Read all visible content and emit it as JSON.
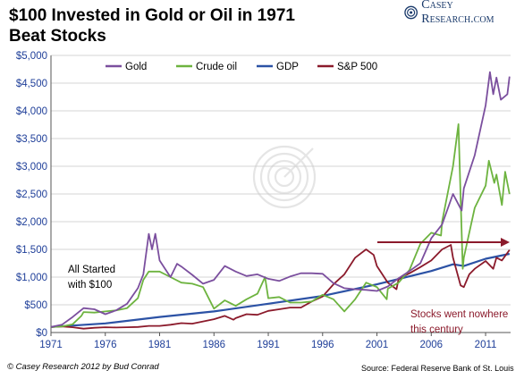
{
  "header": {
    "title_line1": "$100 Invested in Gold or Oil in 1971",
    "title_line2": "Beat Stocks",
    "brand": "Casey Research.com"
  },
  "footer": {
    "copyright": "© Casey Research 2012 by Bud Conrad",
    "source": "Source:  Federal Reserve Bank of St. Louis"
  },
  "chart_data": {
    "type": "line",
    "title": "$100 Invested in Gold or Oil in 1971 Beat Stocks",
    "xlim": [
      1971,
      2013.3
    ],
    "ylim": [
      0,
      5000
    ],
    "x_ticks": [
      "1971",
      "1976",
      "1981",
      "1986",
      "1991",
      "1996",
      "2001",
      "2006",
      "2011"
    ],
    "y_ticks": [
      "$0",
      "$500",
      "$1,000",
      "$1,500",
      "$2,000",
      "$2,500",
      "$3,000",
      "$3,500",
      "$4,000",
      "$4,500",
      "$5,000"
    ],
    "grid": "horizontal",
    "legend_position": "top",
    "annotations": {
      "start_line1": "All Started",
      "start_line2": "with $100",
      "stocks_line1": "Stocks went nowhere",
      "stocks_line2": "this century"
    },
    "series": [
      {
        "name": "Gold",
        "color": "#7b4f9e",
        "points": [
          [
            1971,
            100
          ],
          [
            1972,
            140
          ],
          [
            1973,
            280
          ],
          [
            1974,
            440
          ],
          [
            1975,
            420
          ],
          [
            1976,
            330
          ],
          [
            1977,
            400
          ],
          [
            1978,
            520
          ],
          [
            1979,
            800
          ],
          [
            1979.5,
            1050
          ],
          [
            1980,
            1780
          ],
          [
            1980.3,
            1500
          ],
          [
            1980.6,
            1780
          ],
          [
            1981,
            1300
          ],
          [
            1981.5,
            1150
          ],
          [
            1982,
            1000
          ],
          [
            1982.6,
            1240
          ],
          [
            1983,
            1190
          ],
          [
            1984,
            1040
          ],
          [
            1985,
            880
          ],
          [
            1986,
            950
          ],
          [
            1987,
            1200
          ],
          [
            1988,
            1100
          ],
          [
            1989,
            1020
          ],
          [
            1990,
            1050
          ],
          [
            1991,
            970
          ],
          [
            1992,
            930
          ],
          [
            1993,
            1010
          ],
          [
            1994,
            1070
          ],
          [
            1995,
            1070
          ],
          [
            1996,
            1060
          ],
          [
            1997,
            890
          ],
          [
            1998,
            800
          ],
          [
            1999,
            780
          ],
          [
            2000,
            770
          ],
          [
            2001,
            750
          ],
          [
            2002,
            830
          ],
          [
            2003,
            980
          ],
          [
            2004,
            1110
          ],
          [
            2005,
            1250
          ],
          [
            2006,
            1700
          ],
          [
            2007,
            1950
          ],
          [
            2008,
            2500
          ],
          [
            2008.8,
            2200
          ],
          [
            2009,
            2600
          ],
          [
            2010,
            3200
          ],
          [
            2011,
            4100
          ],
          [
            2011.4,
            4700
          ],
          [
            2011.7,
            4300
          ],
          [
            2012,
            4600
          ],
          [
            2012.4,
            4200
          ],
          [
            2013,
            4300
          ],
          [
            2013.2,
            4620
          ]
        ]
      },
      {
        "name": "Crude oil",
        "color": "#6db33f",
        "points": [
          [
            1971,
            100
          ],
          [
            1972,
            110
          ],
          [
            1973,
            150
          ],
          [
            1973.8,
            300
          ],
          [
            1974,
            370
          ],
          [
            1975,
            360
          ],
          [
            1976,
            380
          ],
          [
            1977,
            400
          ],
          [
            1978,
            440
          ],
          [
            1979,
            620
          ],
          [
            1979.5,
            950
          ],
          [
            1980,
            1100
          ],
          [
            1981,
            1100
          ],
          [
            1982,
            1000
          ],
          [
            1983,
            900
          ],
          [
            1984,
            880
          ],
          [
            1985,
            820
          ],
          [
            1986,
            430
          ],
          [
            1987,
            580
          ],
          [
            1988,
            480
          ],
          [
            1989,
            600
          ],
          [
            1990,
            700
          ],
          [
            1990.7,
            1000
          ],
          [
            1991,
            620
          ],
          [
            1992,
            640
          ],
          [
            1993,
            540
          ],
          [
            1994,
            540
          ],
          [
            1995,
            560
          ],
          [
            1996,
            680
          ],
          [
            1997,
            600
          ],
          [
            1998,
            380
          ],
          [
            1999,
            600
          ],
          [
            2000,
            900
          ],
          [
            2001,
            820
          ],
          [
            2001.9,
            600
          ],
          [
            2002,
            790
          ],
          [
            2003,
            900
          ],
          [
            2004,
            1130
          ],
          [
            2005,
            1600
          ],
          [
            2006,
            1800
          ],
          [
            2006.9,
            1750
          ],
          [
            2007,
            2000
          ],
          [
            2008,
            3000
          ],
          [
            2008.5,
            3760
          ],
          [
            2008.9,
            1150
          ],
          [
            2009,
            1350
          ],
          [
            2010,
            2250
          ],
          [
            2011,
            2650
          ],
          [
            2011.3,
            3100
          ],
          [
            2011.8,
            2700
          ],
          [
            2012,
            2850
          ],
          [
            2012.5,
            2300
          ],
          [
            2012.8,
            2900
          ],
          [
            2013.2,
            2500
          ]
        ]
      },
      {
        "name": "GDP",
        "color": "#2c52a5",
        "points": [
          [
            1971,
            100
          ],
          [
            1976,
            165
          ],
          [
            1981,
            280
          ],
          [
            1986,
            380
          ],
          [
            1991,
            520
          ],
          [
            1996,
            660
          ],
          [
            2001,
            870
          ],
          [
            2006,
            1110
          ],
          [
            2008,
            1230
          ],
          [
            2009,
            1200
          ],
          [
            2011,
            1330
          ],
          [
            2013.2,
            1420
          ]
        ]
      },
      {
        "name": "S&P 500",
        "color": "#8b1a2b",
        "points": [
          [
            1971,
            100
          ],
          [
            1972,
            110
          ],
          [
            1973,
            95
          ],
          [
            1974,
            70
          ],
          [
            1975,
            85
          ],
          [
            1976,
            95
          ],
          [
            1977,
            90
          ],
          [
            1978,
            95
          ],
          [
            1979,
            100
          ],
          [
            1980,
            120
          ],
          [
            1981,
            120
          ],
          [
            1982,
            140
          ],
          [
            1983,
            170
          ],
          [
            1984,
            160
          ],
          [
            1985,
            200
          ],
          [
            1986,
            240
          ],
          [
            1987,
            300
          ],
          [
            1987.8,
            230
          ],
          [
            1988,
            260
          ],
          [
            1989,
            330
          ],
          [
            1990,
            320
          ],
          [
            1991,
            390
          ],
          [
            1992,
            420
          ],
          [
            1993,
            450
          ],
          [
            1994,
            450
          ],
          [
            1995,
            560
          ],
          [
            1996,
            650
          ],
          [
            1997,
            870
          ],
          [
            1998,
            1050
          ],
          [
            1999,
            1350
          ],
          [
            2000,
            1500
          ],
          [
            2000.7,
            1400
          ],
          [
            2001,
            1200
          ],
          [
            2002,
            900
          ],
          [
            2002.8,
            780
          ],
          [
            2003,
            970
          ],
          [
            2004,
            1070
          ],
          [
            2005,
            1180
          ],
          [
            2006,
            1300
          ],
          [
            2007,
            1500
          ],
          [
            2007.8,
            1580
          ],
          [
            2008,
            1350
          ],
          [
            2008.7,
            850
          ],
          [
            2009,
            820
          ],
          [
            2009.5,
            1050
          ],
          [
            2010,
            1150
          ],
          [
            2011,
            1290
          ],
          [
            2011.7,
            1150
          ],
          [
            2012,
            1350
          ],
          [
            2012.5,
            1300
          ],
          [
            2013.2,
            1490
          ]
        ]
      }
    ]
  }
}
